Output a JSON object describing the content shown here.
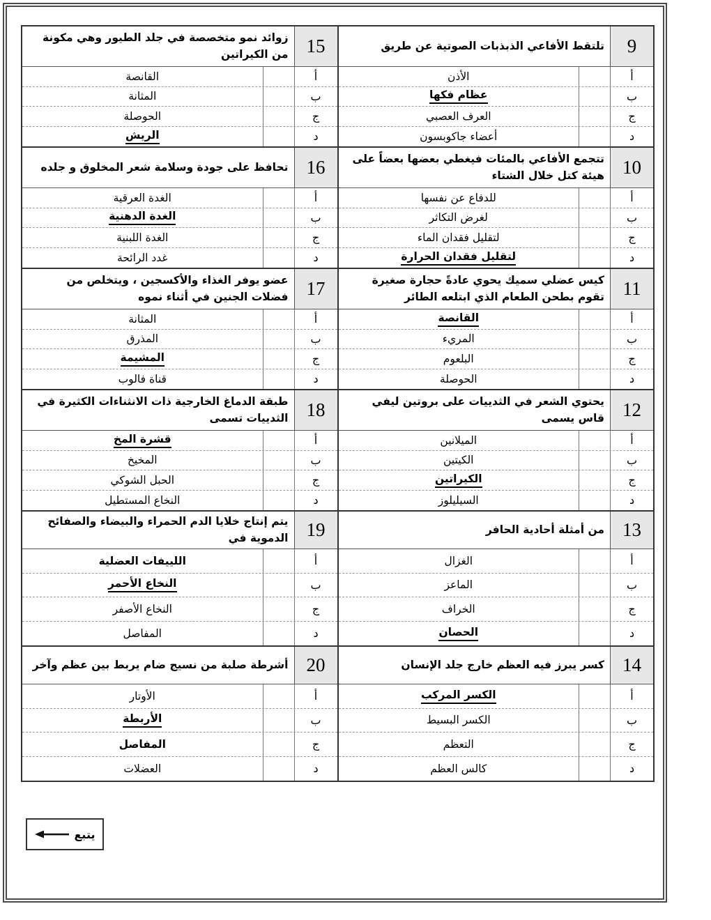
{
  "document": {
    "language": "Arabic",
    "kind": "multiple-choice exam sheet",
    "colors": {
      "number_cell_bg": "#e7e7e7",
      "border_dark": "#333333",
      "dashed_divider": "#9a9a9a",
      "page_bg": "#ffffff"
    },
    "continue_box": {
      "label": "يتبع",
      "arrow_icon": "long-left-arrow"
    },
    "right_column_questions": [
      {
        "number": "9",
        "question": "تلتقط الأفاعي الذبذبات الصوتية عن طريق",
        "options": [
          {
            "letter": "أ",
            "text": "الأذن",
            "is_answer": false,
            "bold": false
          },
          {
            "letter": "ب",
            "text": "عظام فكها",
            "is_answer": true,
            "bold": true
          },
          {
            "letter": "ج",
            "text": "العرف العصبي",
            "is_answer": false,
            "bold": false
          },
          {
            "letter": "د",
            "text": "أعضاء جاكوبسون",
            "is_answer": false,
            "bold": false
          }
        ]
      },
      {
        "number": "10",
        "question": "تتجمع الأفاعي بالمئات فيغطي بعضها بعضاً على هيئة كتل خلال الشتاء",
        "options": [
          {
            "letter": "أ",
            "text": "للدفاع عن نفسها",
            "is_answer": false,
            "bold": false
          },
          {
            "letter": "ب",
            "text": "لغرض التكاثر",
            "is_answer": false,
            "bold": false
          },
          {
            "letter": "ج",
            "text": "لتقليل فقدان الماء",
            "is_answer": false,
            "bold": false
          },
          {
            "letter": "د",
            "text": "لتقليل فقدان الحرارة",
            "is_answer": true,
            "bold": true
          }
        ]
      },
      {
        "number": "11",
        "question": "كيس عضلي سميك يحوي عادةً حجارة صغيرة تقوم بطحن الطعام الذي ابتلعه الطائر",
        "options": [
          {
            "letter": "أ",
            "text": "القانصة",
            "is_answer": true,
            "bold": true
          },
          {
            "letter": "ب",
            "text": "المريء",
            "is_answer": false,
            "bold": false
          },
          {
            "letter": "ج",
            "text": "البلعوم",
            "is_answer": false,
            "bold": false
          },
          {
            "letter": "د",
            "text": "الحوصلة",
            "is_answer": false,
            "bold": false
          }
        ]
      },
      {
        "number": "12",
        "question": "يحتوي الشعر في الثدييات على بروتين ليفي قاس يسمى",
        "options": [
          {
            "letter": "أ",
            "text": "الميلانين",
            "is_answer": false,
            "bold": false
          },
          {
            "letter": "ب",
            "text": "الكيتين",
            "is_answer": false,
            "bold": false
          },
          {
            "letter": "ج",
            "text": "الكيراتين",
            "is_answer": true,
            "bold": true
          },
          {
            "letter": "د",
            "text": "السيليلوز",
            "is_answer": false,
            "bold": false
          }
        ]
      },
      {
        "number": "13",
        "question": "من أمثلة أحادية الحافر",
        "options": [
          {
            "letter": "أ",
            "text": "الغزال",
            "is_answer": false,
            "bold": false
          },
          {
            "letter": "ب",
            "text": "الماعز",
            "is_answer": false,
            "bold": false
          },
          {
            "letter": "ج",
            "text": "الخراف",
            "is_answer": false,
            "bold": false
          },
          {
            "letter": "د",
            "text": "الحصان",
            "is_answer": true,
            "bold": true
          }
        ]
      },
      {
        "number": "14",
        "question": "كسر يبرز فيه العظم خارج جلد الإنسان",
        "options": [
          {
            "letter": "أ",
            "text": "الكسر المركب",
            "is_answer": true,
            "bold": true
          },
          {
            "letter": "ب",
            "text": "الكسر البسيط",
            "is_answer": false,
            "bold": false
          },
          {
            "letter": "ج",
            "text": "التعظم",
            "is_answer": false,
            "bold": false
          },
          {
            "letter": "د",
            "text": "كالس العظم",
            "is_answer": false,
            "bold": false
          }
        ]
      }
    ],
    "left_column_questions": [
      {
        "number": "15",
        "question": "زوائد نمو متخصصة في جلد الطيور وهي مكونة من الكيراتين",
        "options": [
          {
            "letter": "أ",
            "text": "القانصة",
            "is_answer": false,
            "bold": false
          },
          {
            "letter": "ب",
            "text": "المثانة",
            "is_answer": false,
            "bold": false
          },
          {
            "letter": "ج",
            "text": "الحوصلة",
            "is_answer": false,
            "bold": false
          },
          {
            "letter": "د",
            "text": "الريش",
            "is_answer": true,
            "bold": true
          }
        ]
      },
      {
        "number": "16",
        "question": "تحافظ على جودة وسلامة شعر المخلوق و جلده",
        "options": [
          {
            "letter": "أ",
            "text": "الغدة العرقية",
            "is_answer": false,
            "bold": false
          },
          {
            "letter": "ب",
            "text": "الغدة الدهنية",
            "is_answer": true,
            "bold": true
          },
          {
            "letter": "ج",
            "text": "الغدة اللبنية",
            "is_answer": false,
            "bold": false
          },
          {
            "letter": "د",
            "text": "غدد الرائحة",
            "is_answer": false,
            "bold": false
          }
        ]
      },
      {
        "number": "17",
        "question": "عضو يوفر الغذاء والأكسجين ، ويتخلص من فضلات الجنين في أثناء نموه",
        "options": [
          {
            "letter": "أ",
            "text": "المثانة",
            "is_answer": false,
            "bold": false
          },
          {
            "letter": "ب",
            "text": "المذرق",
            "is_answer": false,
            "bold": false
          },
          {
            "letter": "ج",
            "text": "المشيمة",
            "is_answer": true,
            "bold": true
          },
          {
            "letter": "د",
            "text": "قناة فالوب",
            "is_answer": false,
            "bold": false
          }
        ]
      },
      {
        "number": "18",
        "question": "طبقة الدماغ الخارجية ذات الانثناءات الكثيرة في الثدييات تسمى",
        "options": [
          {
            "letter": "أ",
            "text": "قشرة المخ",
            "is_answer": true,
            "bold": true
          },
          {
            "letter": "ب",
            "text": "المخيخ",
            "is_answer": false,
            "bold": false
          },
          {
            "letter": "ج",
            "text": "الحبل الشوكي",
            "is_answer": false,
            "bold": false
          },
          {
            "letter": "د",
            "text": "النخاع المستطيل",
            "is_answer": false,
            "bold": false
          }
        ]
      },
      {
        "number": "19",
        "question": "يتم إنتاج خلايا الدم الحمراء والبيضاء والصفائح الدموية في",
        "options": [
          {
            "letter": "أ",
            "text": "اللييفات العضلية",
            "is_answer": false,
            "bold": true
          },
          {
            "letter": "ب",
            "text": "النخاع الأحمر",
            "is_answer": true,
            "bold": true
          },
          {
            "letter": "ج",
            "text": "النخاع الأصفر",
            "is_answer": false,
            "bold": false
          },
          {
            "letter": "د",
            "text": "المفاصل",
            "is_answer": false,
            "bold": false
          }
        ]
      },
      {
        "number": "20",
        "question": "أشرطة صلبة من نسيج ضام يربط بين عظم وآخر",
        "options": [
          {
            "letter": "أ",
            "text": "الأوتار",
            "is_answer": false,
            "bold": false
          },
          {
            "letter": "ب",
            "text": "الأربطة",
            "is_answer": true,
            "bold": true
          },
          {
            "letter": "ج",
            "text": "المفاصل",
            "is_answer": false,
            "bold": true
          },
          {
            "letter": "د",
            "text": "العضلات",
            "is_answer": false,
            "bold": false
          }
        ]
      }
    ]
  }
}
